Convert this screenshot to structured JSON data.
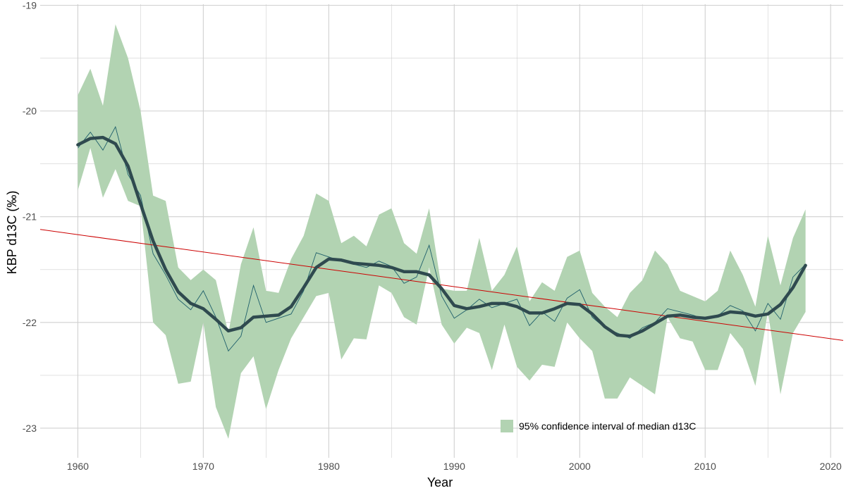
{
  "chart_data": {
    "type": "line",
    "xlabel": "Year",
    "ylabel": "KBP d13C (‰)",
    "xlim": [
      1957,
      2021
    ],
    "ylim": [
      -23.28,
      -18.99
    ],
    "x_ticks": [
      1960,
      1970,
      1980,
      1990,
      2000,
      2010,
      2020
    ],
    "y_ticks": [
      -23,
      -22,
      -21,
      -20,
      -19
    ],
    "x_minor_ticks": [
      1965,
      1975,
      1985,
      1995,
      2005,
      2015
    ],
    "y_minor_ticks": [
      -22.5,
      -21.5,
      -20.5,
      -19.5
    ],
    "grid": true,
    "legend_position": "bottom-center",
    "legend": [
      {
        "label": "95% confidence interval of median d13C",
        "color": "#b2d3b2"
      }
    ],
    "colors": {
      "ribbon": "#b2d3b2",
      "median": "#1f5f6b",
      "smooth": "#2f4a4f",
      "trend": "#cc0000",
      "grid": "#d0d0d0"
    },
    "years": [
      1960,
      1961,
      1962,
      1963,
      1964,
      1965,
      1966,
      1967,
      1968,
      1969,
      1970,
      1971,
      1972,
      1973,
      1974,
      1975,
      1976,
      1977,
      1978,
      1979,
      1980,
      1981,
      1982,
      1983,
      1984,
      1985,
      1986,
      1987,
      1988,
      1989,
      1990,
      1991,
      1992,
      1993,
      1994,
      1995,
      1996,
      1997,
      1998,
      1999,
      2000,
      2001,
      2002,
      2003,
      2004,
      2005,
      2006,
      2007,
      2008,
      2009,
      2010,
      2011,
      2012,
      2013,
      2014,
      2015,
      2016,
      2017,
      2018
    ],
    "ci_upper": [
      -19.85,
      -19.6,
      -19.95,
      -19.18,
      -19.5,
      -20.0,
      -20.8,
      -20.85,
      -21.48,
      -21.6,
      -21.5,
      -21.6,
      -22.1,
      -21.45,
      -21.1,
      -21.7,
      -21.72,
      -21.4,
      -21.18,
      -20.78,
      -20.85,
      -21.25,
      -21.18,
      -21.28,
      -20.98,
      -20.92,
      -21.25,
      -21.35,
      -20.92,
      -21.68,
      -21.7,
      -21.7,
      -21.2,
      -21.7,
      -21.55,
      -21.28,
      -21.8,
      -21.62,
      -21.7,
      -21.38,
      -21.32,
      -21.72,
      -21.85,
      -21.95,
      -21.72,
      -21.6,
      -21.32,
      -21.45,
      -21.7,
      -21.75,
      -21.8,
      -21.7,
      -21.32,
      -21.55,
      -21.85,
      -21.18,
      -21.65,
      -21.2,
      -20.93
    ],
    "ci_lower": [
      -20.75,
      -20.35,
      -20.82,
      -20.55,
      -20.85,
      -20.9,
      -22.0,
      -22.12,
      -22.58,
      -22.56,
      -22.0,
      -22.8,
      -23.1,
      -22.48,
      -22.32,
      -22.82,
      -22.45,
      -22.15,
      -21.95,
      -21.75,
      -21.72,
      -22.35,
      -22.15,
      -22.16,
      -21.65,
      -21.72,
      -21.95,
      -22.02,
      -21.48,
      -22.02,
      -22.2,
      -22.05,
      -22.1,
      -22.45,
      -22.02,
      -22.42,
      -22.55,
      -22.4,
      -22.42,
      -22.0,
      -22.15,
      -22.27,
      -22.72,
      -22.72,
      -22.52,
      -22.6,
      -22.68,
      -21.95,
      -22.15,
      -22.18,
      -22.45,
      -22.45,
      -22.1,
      -22.25,
      -22.6,
      -21.9,
      -22.68,
      -22.1,
      -21.9
    ],
    "median": [
      -20.35,
      -20.2,
      -20.37,
      -20.15,
      -20.6,
      -20.8,
      -21.35,
      -21.55,
      -21.78,
      -21.88,
      -21.7,
      -21.95,
      -22.27,
      -22.13,
      -21.65,
      -22.0,
      -21.96,
      -21.92,
      -21.7,
      -21.34,
      -21.38,
      -21.42,
      -21.45,
      -21.48,
      -21.42,
      -21.47,
      -21.63,
      -21.57,
      -21.27,
      -21.75,
      -21.96,
      -21.88,
      -21.78,
      -21.86,
      -21.82,
      -21.78,
      -22.03,
      -21.9,
      -21.99,
      -21.77,
      -21.69,
      -21.95,
      -22.05,
      -22.1,
      -22.15,
      -22.05,
      -22.0,
      -21.87,
      -21.9,
      -21.93,
      -21.97,
      -21.94,
      -21.84,
      -21.89,
      -22.08,
      -21.82,
      -21.97,
      -21.57,
      -21.45
    ],
    "smooth": [
      -20.32,
      -20.26,
      -20.25,
      -20.31,
      -20.52,
      -20.88,
      -21.23,
      -21.5,
      -21.71,
      -21.82,
      -21.87,
      -21.97,
      -22.08,
      -22.05,
      -21.95,
      -21.94,
      -21.93,
      -21.85,
      -21.67,
      -21.48,
      -21.4,
      -21.41,
      -21.44,
      -21.45,
      -21.46,
      -21.48,
      -21.52,
      -21.52,
      -21.55,
      -21.68,
      -21.84,
      -21.87,
      -21.85,
      -21.82,
      -21.82,
      -21.85,
      -21.91,
      -21.91,
      -21.87,
      -21.82,
      -21.83,
      -21.92,
      -22.04,
      -22.12,
      -22.13,
      -22.08,
      -22.01,
      -21.94,
      -21.93,
      -21.95,
      -21.96,
      -21.94,
      -21.9,
      -21.91,
      -21.94,
      -21.92,
      -21.83,
      -21.67,
      -21.46
    ],
    "trend_line": {
      "x": [
        1957,
        2021
      ],
      "y": [
        -21.12,
        -22.17
      ]
    }
  }
}
